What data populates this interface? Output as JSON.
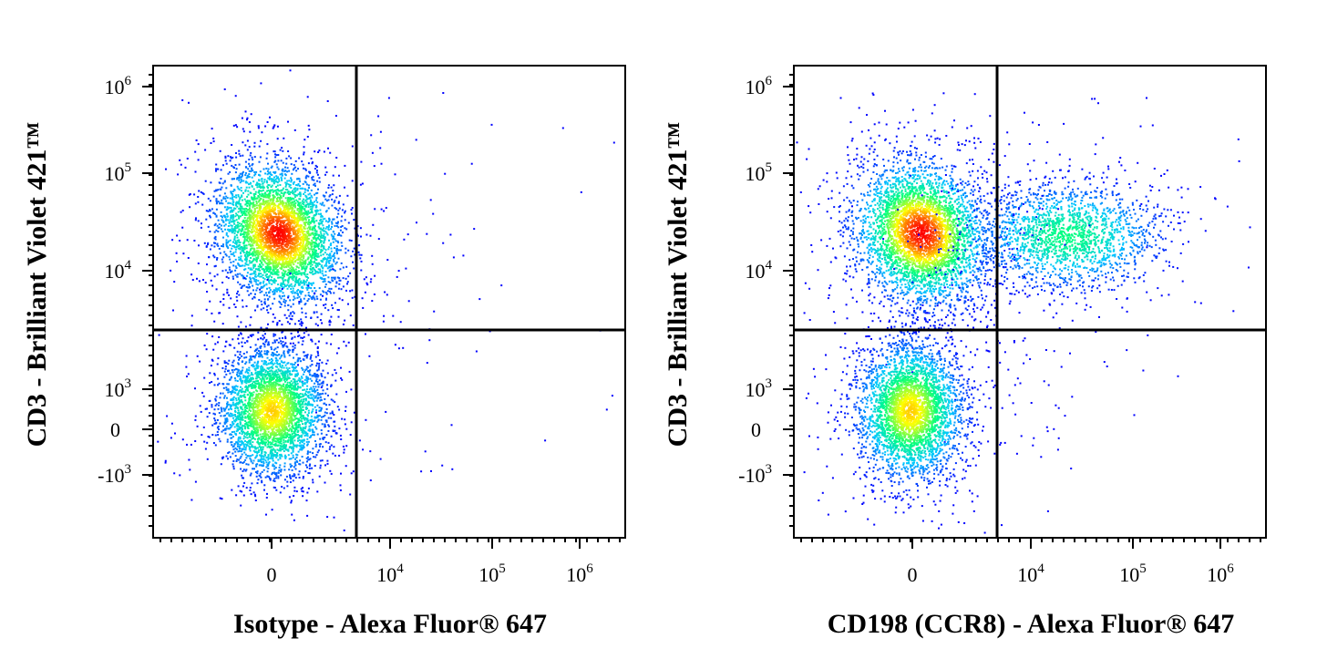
{
  "chart_data": [
    {
      "type": "scatter",
      "subtype": "flow-cytometry-density-dot-plot",
      "xlabel": "Isotype - Alexa Fluor® 647",
      "ylabel": "CD3 - Brilliant Violet 421™",
      "x_scale": "biexponential",
      "y_scale": "biexponential",
      "x_tick_labels": [
        "0",
        "10^4",
        "10^5",
        "10^6"
      ],
      "y_tick_labels": [
        "10^6",
        "10^5",
        "10^4",
        "10^3",
        "0",
        "-10^3"
      ],
      "quadrant_gate": {
        "x": 3500,
        "y": 2500
      },
      "color_scale": [
        "#0000ff",
        "#00c8ff",
        "#00ff80",
        "#ffff00",
        "#ff0000"
      ],
      "populations": [
        {
          "label": "CD3+ CD198-",
          "x_center": 300,
          "y_center": 25000,
          "relative_density": 1.0
        },
        {
          "label": "CD3- CD198-",
          "x_center": 100,
          "y_center": 200,
          "relative_density": 0.8
        }
      ]
    },
    {
      "type": "scatter",
      "subtype": "flow-cytometry-density-dot-plot",
      "xlabel": "CD198 (CCR8) - Alexa Fluor® 647",
      "ylabel": "CD3 - Brilliant Violet 421™",
      "x_scale": "biexponential",
      "y_scale": "biexponential",
      "x_tick_labels": [
        "0",
        "10^4",
        "10^5",
        "10^6"
      ],
      "y_tick_labels": [
        "10^6",
        "10^5",
        "10^4",
        "10^3",
        "0",
        "-10^3"
      ],
      "quadrant_gate": {
        "x": 3500,
        "y": 2500
      },
      "color_scale": [
        "#0000ff",
        "#00c8ff",
        "#00ff80",
        "#ffff00",
        "#ff0000"
      ],
      "populations": [
        {
          "label": "CD3+ CD198-",
          "x_center": 300,
          "y_center": 25000,
          "relative_density": 1.0
        },
        {
          "label": "CD3+ CD198+",
          "x_center": 30000,
          "y_center": 20000,
          "relative_density": 0.5
        },
        {
          "label": "CD3- CD198-",
          "x_center": 100,
          "y_center": 200,
          "relative_density": 0.8
        }
      ]
    }
  ],
  "ticks": {
    "x": [
      {
        "base": "0",
        "exp": ""
      },
      {
        "base": "10",
        "exp": "4"
      },
      {
        "base": "10",
        "exp": "5"
      },
      {
        "base": "10",
        "exp": "6"
      }
    ],
    "y": [
      {
        "base": "10",
        "exp": "6"
      },
      {
        "base": "10",
        "exp": "5"
      },
      {
        "base": "10",
        "exp": "4"
      },
      {
        "base": "10",
        "exp": "3"
      },
      {
        "base": "0",
        "exp": ""
      },
      {
        "base": "-10",
        "exp": "3"
      }
    ]
  }
}
